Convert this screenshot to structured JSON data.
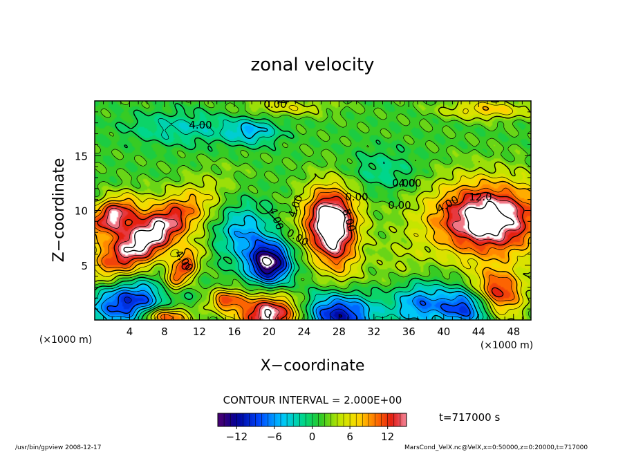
{
  "chart_data": {
    "type": "heatmap",
    "title": "zonal velocity",
    "xlabel": "X−coordinate",
    "ylabel": "Z−coordinate",
    "x_unit_left": "(×1000 m)",
    "x_unit_right": "(×1000 m)",
    "xlim": [
      0,
      50
    ],
    "ylim": [
      0,
      20
    ],
    "x_ticks": [
      4,
      8,
      12,
      16,
      20,
      24,
      28,
      32,
      36,
      40,
      44,
      48
    ],
    "y_ticks": [
      5,
      10,
      15
    ],
    "contour_interval_label": "CONTOUR INTERVAL = 2.000E+00",
    "contour_labels": [
      "4.00",
      "0.00",
      "4.00",
      "0.00",
      "0.00",
      "4.00",
      "12.0",
      "4.00",
      "4.00",
      "0.00",
      "4.00",
      "0.00",
      "8.00"
    ],
    "colorbar": {
      "min": -15,
      "max": 15,
      "ticks": [
        -12,
        -6,
        0,
        6,
        12
      ]
    },
    "time_label": "t=717000 s",
    "footer_left": "/usr/bin/gpview   2008-12-17",
    "footer_right": "MarsCond_VelX.nc@VelX,x=0:50000,z=0:20000,t=717000",
    "features": [
      {
        "x": 6,
        "z": 7.5,
        "value": 16,
        "rx": 7,
        "rz": 2.2,
        "angle": 28
      },
      {
        "x": 2,
        "z": 9.5,
        "value": 13,
        "rx": 3,
        "rz": 1.6,
        "angle": 20
      },
      {
        "x": 10,
        "z": 4.5,
        "value": 11,
        "rx": 2.6,
        "rz": 1.3,
        "angle": 45
      },
      {
        "x": 45,
        "z": 9.2,
        "value": 17,
        "rx": 6.5,
        "rz": 3.4,
        "angle": 0
      },
      {
        "x": 27,
        "z": 9.2,
        "value": 13,
        "rx": 3.2,
        "rz": 3.0,
        "angle": 30
      },
      {
        "x": 27.5,
        "z": 7.0,
        "value": 8,
        "rx": 2.5,
        "rz": 4.0,
        "angle": 20
      },
      {
        "x": 20,
        "z": 5.2,
        "value": -17,
        "rx": 2.4,
        "rz": 1.9,
        "angle": 0
      },
      {
        "x": 17,
        "z": 8.0,
        "value": -7,
        "rx": 3.0,
        "rz": 2.5,
        "angle": 0
      },
      {
        "x": 20,
        "z": 0.5,
        "value": 15,
        "rx": 3.6,
        "rz": 1.8,
        "angle": 0
      },
      {
        "x": 15,
        "z": 1.8,
        "value": 9,
        "rx": 2.0,
        "rz": 1.0,
        "angle": 0
      },
      {
        "x": 8,
        "z": 0.3,
        "value": 13,
        "rx": 3.0,
        "rz": 1.0,
        "angle": 0
      },
      {
        "x": 4,
        "z": 1.5,
        "value": -12,
        "rx": 5.0,
        "rz": 2.2,
        "angle": 0
      },
      {
        "x": 28,
        "z": 0.5,
        "value": -13,
        "rx": 4.0,
        "rz": 2.0,
        "angle": 0
      },
      {
        "x": 46,
        "z": 2.2,
        "value": 14,
        "rx": 3.0,
        "rz": 2.2,
        "angle": 0
      },
      {
        "x": 43,
        "z": 1.2,
        "value": -13,
        "rx": 3.5,
        "rz": 1.8,
        "angle": 0
      },
      {
        "x": 37,
        "z": 1.5,
        "value": -8,
        "rx": 3.0,
        "rz": 2.0,
        "angle": 0
      },
      {
        "x": 10,
        "z": 17.5,
        "value": -4,
        "rx": 6.0,
        "rz": 1.5,
        "angle": 0
      },
      {
        "x": 18,
        "z": 17.2,
        "value": -6,
        "rx": 3.0,
        "rz": 1.2,
        "angle": 0
      },
      {
        "x": 33,
        "z": 13.5,
        "value": -3,
        "rx": 4.0,
        "rz": 2.0,
        "angle": 0
      },
      {
        "x": 45,
        "z": 19.2,
        "value": 6,
        "rx": 5.0,
        "rz": 0.9,
        "angle": 0
      },
      {
        "x": 22,
        "z": 19.4,
        "value": 4,
        "rx": 5.0,
        "rz": 0.8,
        "angle": 0
      },
      {
        "x": 35,
        "z": 5.0,
        "value": 2,
        "rx": 3.0,
        "rz": 3.0,
        "angle": 0
      }
    ]
  }
}
